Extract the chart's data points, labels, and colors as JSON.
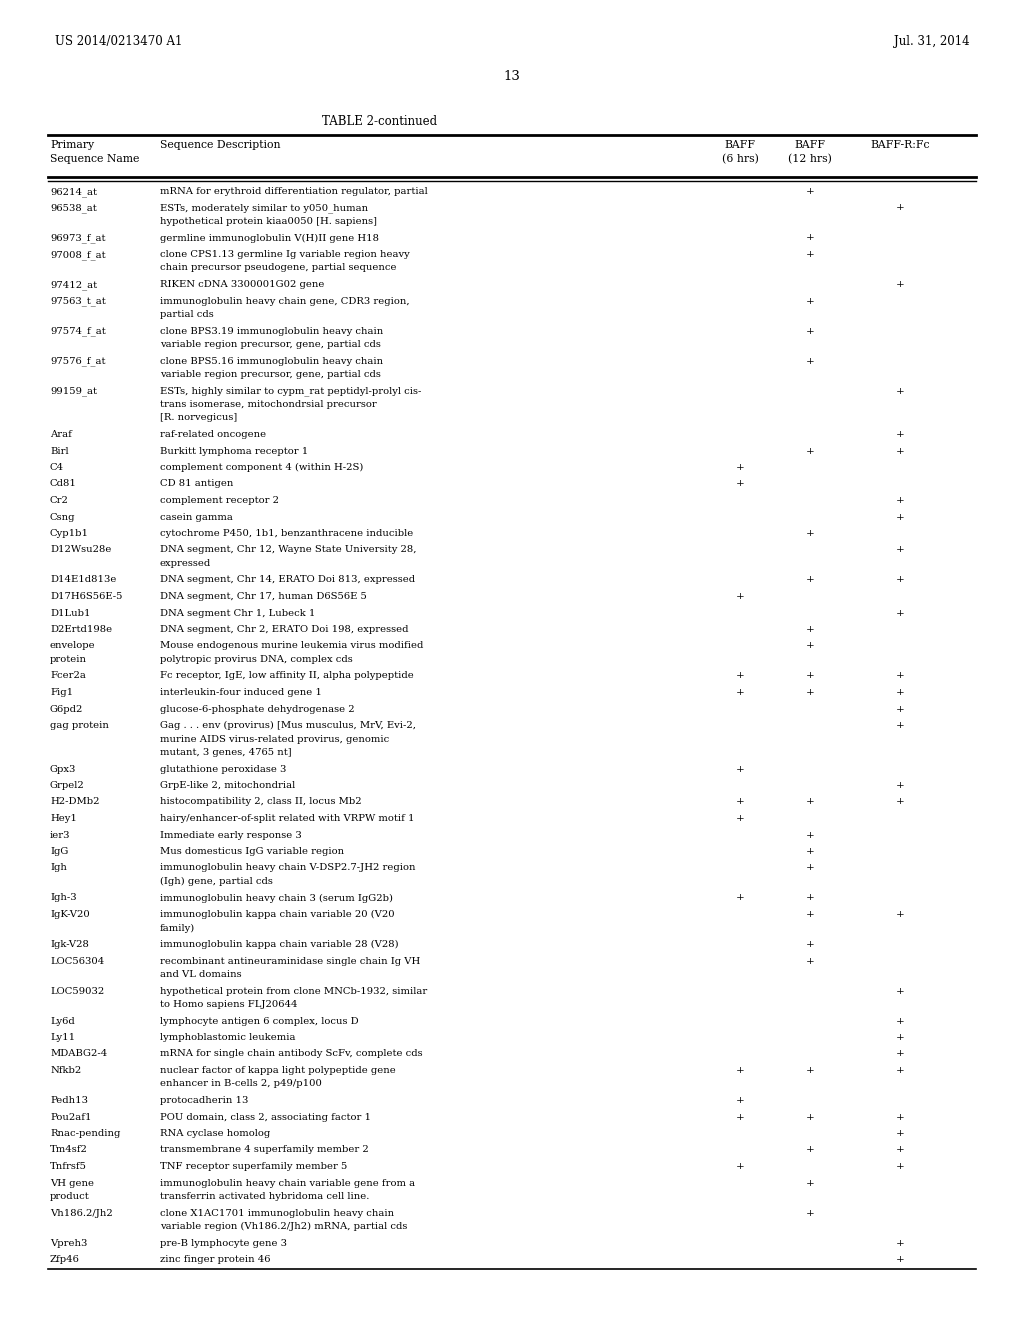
{
  "page_number": "13",
  "patent_left": "US 2014/0213470 A1",
  "patent_right": "Jul. 31, 2014",
  "table_title": "TABLE 2-continued",
  "rows": [
    [
      "96214_at",
      "mRNA for erythroid differentiation regulator, partial",
      "",
      "+",
      ""
    ],
    [
      "96538_at",
      "ESTs, moderately similar to y050_human\nhypothetical protein kiaa0050 [H. sapiens]",
      "",
      "",
      "+"
    ],
    [
      "96973_f_at",
      "germline immunoglobulin V(H)II gene H18",
      "",
      "+",
      ""
    ],
    [
      "97008_f_at",
      "clone CPS1.13 germline Ig variable region heavy\nchain precursor pseudogene, partial sequence",
      "",
      "+",
      ""
    ],
    [
      "97412_at",
      "RIKEN cDNA 3300001G02 gene",
      "",
      "",
      "+"
    ],
    [
      "97563_t_at",
      "immunoglobulin heavy chain gene, CDR3 region,\npartial cds",
      "",
      "+",
      ""
    ],
    [
      "97574_f_at",
      "clone BPS3.19 immunoglobulin heavy chain\nvariable region precursor, gene, partial cds",
      "",
      "+",
      ""
    ],
    [
      "97576_f_at",
      "clone BPS5.16 immunoglobulin heavy chain\nvariable region precursor, gene, partial cds",
      "",
      "+",
      ""
    ],
    [
      "99159_at",
      "ESTs, highly similar to cypm_rat peptidyl-prolyl cis-\ntrans isomerase, mitochondrsial precursor\n[R. norvegicus]",
      "",
      "",
      "+"
    ],
    [
      "Araf",
      "raf-related oncogene",
      "",
      "",
      "+"
    ],
    [
      "Birl",
      "Burkitt lymphoma receptor 1",
      "",
      "+",
      "+"
    ],
    [
      "C4",
      "complement component 4 (within H-2S)",
      "+",
      "",
      ""
    ],
    [
      "Cd81",
      "CD 81 antigen",
      "+",
      "",
      ""
    ],
    [
      "Cr2",
      "complement receptor 2",
      "",
      "",
      "+"
    ],
    [
      "Csng",
      "casein gamma",
      "",
      "",
      "+"
    ],
    [
      "Cyp1b1",
      "cytochrome P450, 1b1, benzanthracene inducible",
      "",
      "+",
      ""
    ],
    [
      "D12Wsu28e",
      "DNA segment, Chr 12, Wayne State University 28,\nexpressed",
      "",
      "",
      "+"
    ],
    [
      "D14E1d813e",
      "DNA segment, Chr 14, ERATO Doi 813, expressed",
      "",
      "+",
      "+"
    ],
    [
      "D17H6S56E-5",
      "DNA segment, Chr 17, human D6S56E 5",
      "+",
      "",
      ""
    ],
    [
      "D1Lub1",
      "DNA segment Chr 1, Lubeck 1",
      "",
      "",
      "+"
    ],
    [
      "D2Ertd198e",
      "DNA segment, Chr 2, ERATO Doi 198, expressed",
      "",
      "+",
      ""
    ],
    [
      "envelope\nprotein",
      "Mouse endogenous murine leukemia virus modified\npolytropic provirus DNA, complex cds",
      "",
      "+",
      ""
    ],
    [
      "Fcer2a",
      "Fc receptor, IgE, low affinity II, alpha polypeptide",
      "+",
      "+",
      "+"
    ],
    [
      "Fig1",
      "interleukin-four induced gene 1",
      "+",
      "+",
      "+"
    ],
    [
      "G6pd2",
      "glucose-6-phosphate dehydrogenase 2",
      "",
      "",
      "+"
    ],
    [
      "gag protein",
      "Gag . . . env (provirus) [Mus musculus, MrV, Evi-2,\nmurine AIDS virus-related provirus, genomic\nmutant, 3 genes, 4765 nt]",
      "",
      "",
      "+"
    ],
    [
      "Gpx3",
      "glutathione peroxidase 3",
      "+",
      "",
      ""
    ],
    [
      "Grpel2",
      "GrpE-like 2, mitochondrial",
      "",
      "",
      "+"
    ],
    [
      "H2-DMb2",
      "histocompatibility 2, class II, locus Mb2",
      "+",
      "+",
      "+"
    ],
    [
      "Hey1",
      "hairy/enhancer-of-split related with VRPW motif 1",
      "+",
      "",
      ""
    ],
    [
      "ier3",
      "Immediate early response 3",
      "",
      "+",
      ""
    ],
    [
      "IgG",
      "Mus domesticus IgG variable region",
      "",
      "+",
      ""
    ],
    [
      "Igh",
      "immunoglobulin heavy chain V-DSP2.7-JH2 region\n(Igh) gene, partial cds",
      "",
      "+",
      ""
    ],
    [
      "Igh-3",
      "immunoglobulin heavy chain 3 (serum IgG2b)",
      "+",
      "+",
      ""
    ],
    [
      "IgK-V20",
      "immunoglobulin kappa chain variable 20 (V20\nfamily)",
      "",
      "+",
      "+"
    ],
    [
      "Igk-V28",
      "immunoglobulin kappa chain variable 28 (V28)",
      "",
      "+",
      ""
    ],
    [
      "LOC56304",
      "recombinant antineuraminidase single chain Ig VH\nand VL domains",
      "",
      "+",
      ""
    ],
    [
      "LOC59032",
      "hypothetical protein from clone MNCb-1932, similar\nto Homo sapiens FLJ20644",
      "",
      "",
      "+"
    ],
    [
      "Ly6d",
      "lymphocyte antigen 6 complex, locus D",
      "",
      "",
      "+"
    ],
    [
      "Ly11",
      "lymphoblastomic leukemia",
      "",
      "",
      "+"
    ],
    [
      "MDABG2-4",
      "mRNA for single chain antibody ScFv, complete cds",
      "",
      "",
      "+"
    ],
    [
      "Nfkb2",
      "nuclear factor of kappa light polypeptide gene\nenhancer in B-cells 2, p49/p100",
      "+",
      "+",
      "+"
    ],
    [
      "Pedh13",
      "protocadherin 13",
      "+",
      "",
      ""
    ],
    [
      "Pou2af1",
      "POU domain, class 2, associating factor 1",
      "+",
      "+",
      "+"
    ],
    [
      "Rnac-pending",
      "RNA cyclase homolog",
      "",
      "",
      "+"
    ],
    [
      "Tm4sf2",
      "transmembrane 4 superfamily member 2",
      "",
      "+",
      "+"
    ],
    [
      "Tnfrsf5",
      "TNF receptor superfamily member 5",
      "+",
      "",
      "+"
    ],
    [
      "VH gene\nproduct",
      "immunoglobulin heavy chain variable gene from a\ntransferrin activated hybridoma cell line.",
      "",
      "+",
      ""
    ],
    [
      "Vh186.2/Jh2",
      "clone X1AC1701 immunoglobulin heavy chain\nvariable region (Vh186.2/Jh2) mRNA, partial cds",
      "",
      "+",
      ""
    ],
    [
      "Vpreh3",
      "pre-B lymphocyte gene 3",
      "",
      "",
      "+"
    ],
    [
      "Zfp46",
      "zinc finger protein 46",
      "",
      "",
      "+"
    ]
  ],
  "italic_species": [
    "H. sapiens",
    "R. norvegicus",
    "Mus musculus",
    "Mus domesticus",
    "Homo sapiens"
  ]
}
